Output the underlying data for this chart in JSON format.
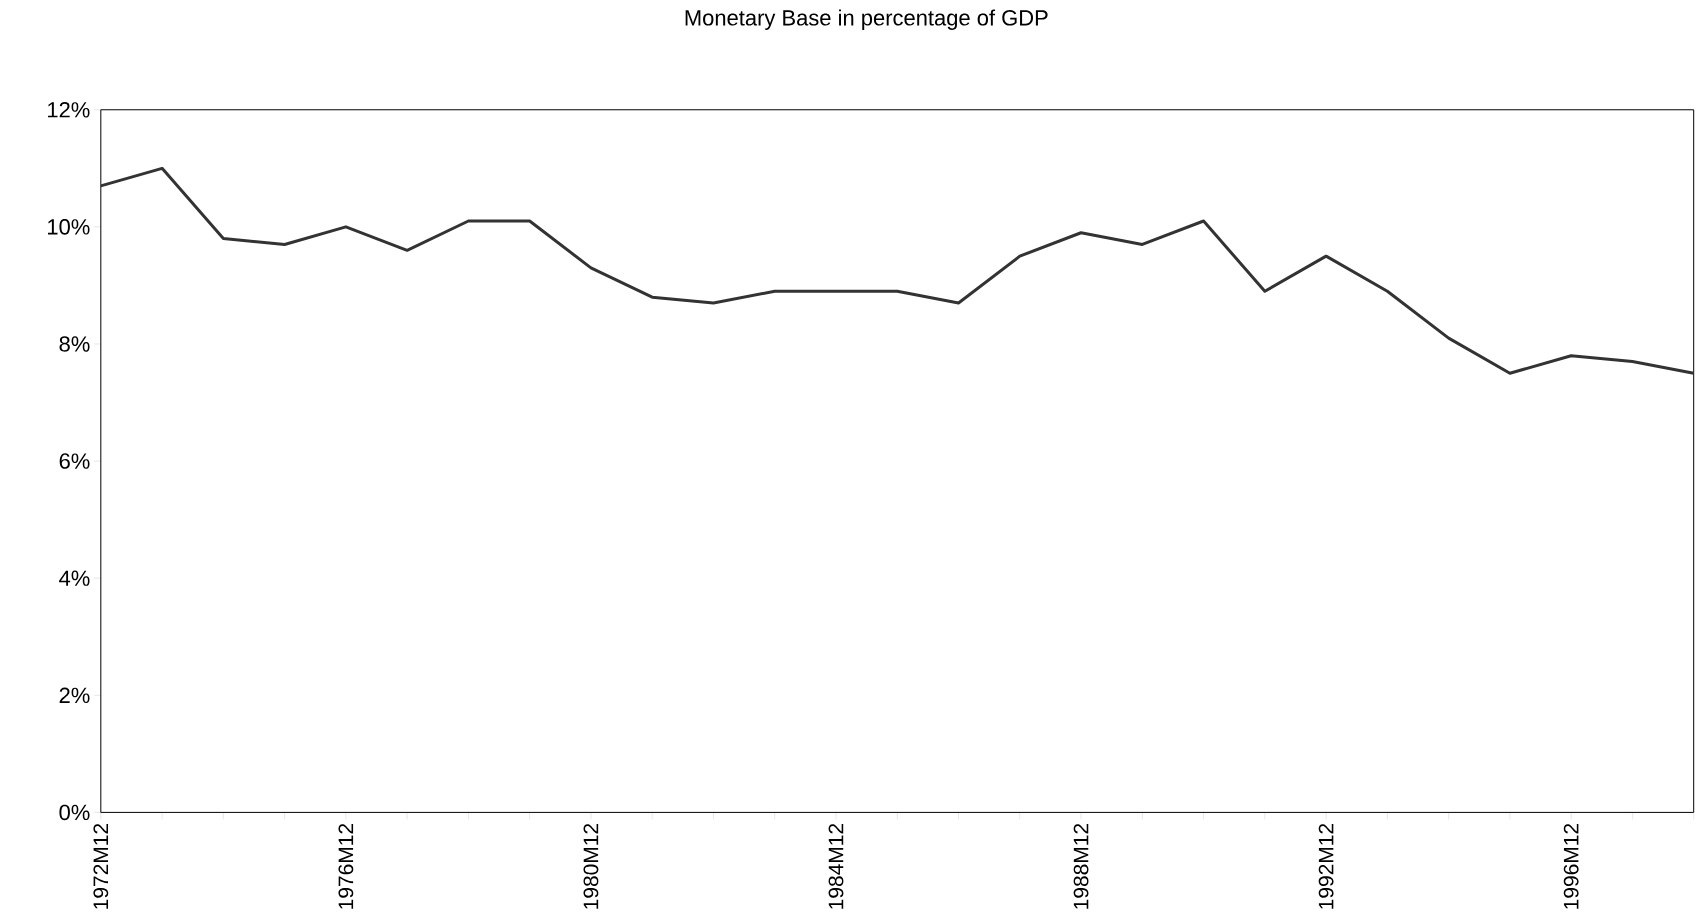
{
  "chart_data": {
    "type": "line",
    "title": "Monetary Base in percentage of GDP",
    "categories": [
      "1972M12",
      null,
      null,
      null,
      "1976M12",
      null,
      null,
      null,
      "1980M12",
      null,
      null,
      null,
      "1984M12",
      null,
      null,
      null,
      "1988M12",
      null,
      null,
      null,
      "1992M12",
      null,
      null,
      null,
      "1996M12",
      null,
      null
    ],
    "series": [
      {
        "color": "#333333",
        "values": [
          10.7,
          11.0,
          9.8,
          9.7,
          10.0,
          9.6,
          10.1,
          10.1,
          9.3,
          8.8,
          8.7,
          8.9,
          8.9,
          8.9,
          8.7,
          9.5,
          9.9,
          9.7,
          10.1,
          8.9,
          9.5,
          8.9,
          8.1,
          7.5,
          7.8,
          7.7,
          7.5
        ]
      }
    ],
    "ylim": [
      0,
      12
    ],
    "yticks": [
      {
        "value": 0,
        "label": "0%"
      },
      {
        "value": 2,
        "label": "2%"
      },
      {
        "value": 4,
        "label": "4%"
      },
      {
        "value": 6,
        "label": "6%"
      },
      {
        "value": 8,
        "label": "8%"
      },
      {
        "value": 10,
        "label": "10%"
      },
      {
        "value": 12,
        "label": "12%"
      }
    ],
    "grid": false,
    "marker": "none",
    "line_style": "solid"
  }
}
